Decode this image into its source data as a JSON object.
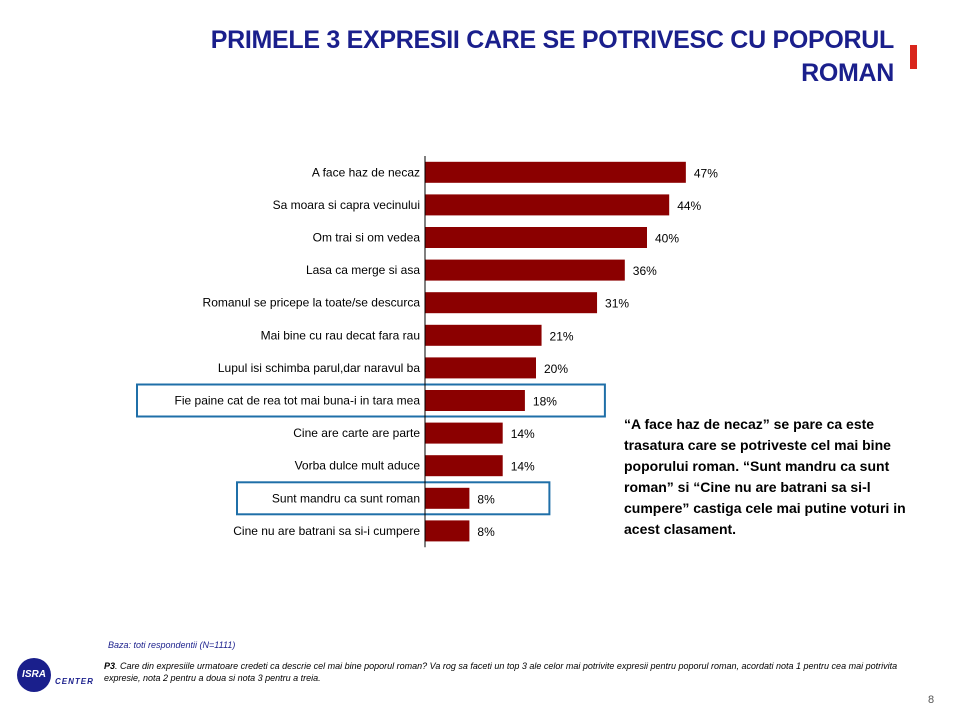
{
  "title": "PRIMELE 3 EXPRESII CARE SE POTRIVESC CU POPORUL ROMAN",
  "chart_data": {
    "type": "bar",
    "orientation": "horizontal",
    "categories": [
      "A face haz de necaz",
      "Sa moara si capra vecinului",
      "Om trai si om vedea",
      "Lasa ca merge si asa",
      "Romanul se pricepe la toate/se descurca",
      "Mai bine cu rau decat fara rau",
      "Lupul isi schimba parul,dar naravul ba",
      "Fie paine cat de rea tot mai buna-i in tara mea",
      "Cine are carte are parte",
      "Vorba dulce mult aduce",
      "Sunt mandru ca sunt roman",
      "Cine nu are batrani sa si-i cumpere"
    ],
    "values": [
      47,
      44,
      40,
      36,
      31,
      21,
      20,
      18,
      14,
      14,
      8,
      8
    ],
    "value_labels": [
      "47%",
      "44%",
      "40%",
      "36%",
      "31%",
      "21%",
      "20%",
      "18%",
      "14%",
      "14%",
      "8%",
      "8%"
    ],
    "bar_color": "#8b0000",
    "highlighted_categories": [
      "Fie paine cat de rea tot mai buna-i in tara mea",
      "Sunt mandru ca sunt roman"
    ],
    "highlight_color": "#1f6fa8",
    "grid": false
  },
  "comment": "“A face haz de necaz” se pare ca este trasatura care se potriveste cel mai bine poporului roman. “Sunt mandru ca sunt roman” si “Cine nu are batrani sa si-l cumpere” castiga cele mai putine voturi in acest clasament.",
  "base_note": "Baza: toti respondentii (N=1111)",
  "question_code": "P3",
  "question_text": ". Care din expresiile urmatoare credeti ca descrie cel mai bine poporul roman? Va rog sa faceti un top 3 ale celor mai potrivite expresii pentru poporul roman, acordati nota 1 pentru cea mai potrivita expresie, nota 2 pentru a doua si nota 3 pentru a treia.",
  "logo": {
    "mark": "ISRA",
    "text": "CENTER"
  },
  "page_number": "8",
  "colors": {
    "title": "#1a1f8c",
    "accent": "#d9261c"
  }
}
